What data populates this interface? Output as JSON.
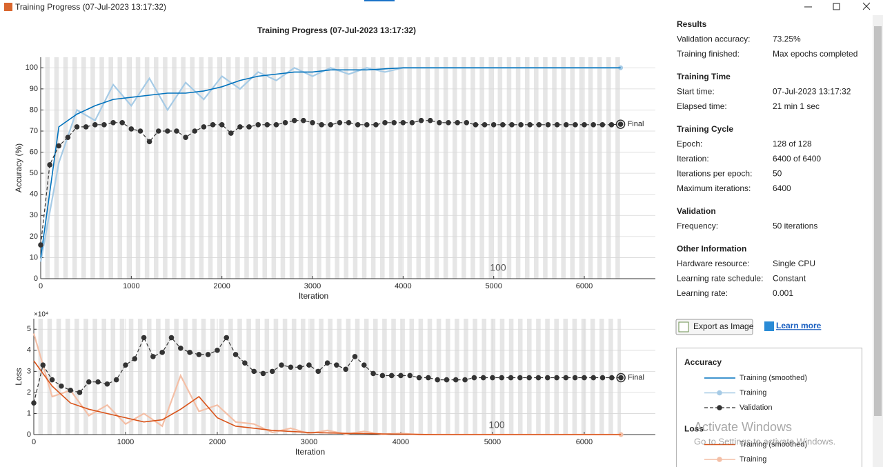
{
  "window_title": "Training Progress (07-Jul-2023 13:17:32)",
  "chart_data": [
    {
      "type": "line",
      "title": "Training Progress (07-Jul-2023 13:17:32)",
      "x_label": "Iteration",
      "y_label": "Accuracy (%)",
      "xlim": [
        0,
        6784
      ],
      "ylim": [
        0,
        105
      ],
      "xticks": [
        0,
        1000,
        2000,
        3000,
        4000,
        5000,
        6000
      ],
      "yticks": [
        0,
        10,
        20,
        30,
        40,
        50,
        60,
        70,
        80,
        90,
        100
      ],
      "grid": true,
      "annotation": "100",
      "final_label": "Final",
      "legend_title": "Accuracy",
      "series": [
        {
          "name": "Training (smoothed)",
          "color": "#0072bd",
          "style": "solid",
          "x": [
            0,
            200,
            400,
            600,
            800,
            1000,
            1200,
            1400,
            1600,
            1800,
            2000,
            2200,
            2400,
            2600,
            2800,
            3000,
            3200,
            3400,
            3600,
            3800,
            4000,
            4200,
            4400,
            4600,
            4800,
            5000,
            5200,
            5400,
            5600,
            5800,
            6000,
            6200,
            6400
          ],
          "values": [
            10,
            72,
            78,
            82,
            85,
            86,
            87,
            88,
            88,
            89,
            91,
            94,
            96,
            97,
            98,
            98,
            99,
            99,
            99,
            99.5,
            100,
            100,
            100,
            100,
            100,
            100,
            100,
            100,
            100,
            100,
            100,
            100,
            100
          ]
        },
        {
          "name": "Training",
          "color": "#a6cbe6",
          "style": "marker",
          "x": [
            0,
            200,
            400,
            600,
            800,
            1000,
            1200,
            1400,
            1600,
            1800,
            2000,
            2200,
            2400,
            2600,
            2800,
            3000,
            3200,
            3400,
            3600,
            3800,
            4000,
            4200,
            4400,
            4600,
            4800,
            5000,
            5200,
            5400,
            5600,
            5800,
            6000,
            6200,
            6400
          ],
          "values": [
            8,
            55,
            80,
            75,
            92,
            82,
            95,
            80,
            93,
            85,
            96,
            90,
            98,
            94,
            100,
            96,
            100,
            97,
            100,
            98,
            100,
            100,
            100,
            100,
            100,
            100,
            100,
            100,
            100,
            100,
            100,
            100,
            100
          ]
        },
        {
          "name": "Validation",
          "color": "#333333",
          "style": "dashed-marker",
          "x": [
            0,
            100,
            200,
            300,
            400,
            500,
            600,
            700,
            800,
            900,
            1000,
            1100,
            1200,
            1300,
            1400,
            1500,
            1600,
            1700,
            1800,
            1900,
            2000,
            2100,
            2200,
            2300,
            2400,
            2500,
            2600,
            2700,
            2800,
            2900,
            3000,
            3100,
            3200,
            3300,
            3400,
            3500,
            3600,
            3700,
            3800,
            3900,
            4000,
            4100,
            4200,
            4300,
            4400,
            4500,
            4600,
            4700,
            4800,
            4900,
            5000,
            5100,
            5200,
            5300,
            5400,
            5500,
            5600,
            5700,
            5800,
            5900,
            6000,
            6100,
            6200,
            6300,
            6400
          ],
          "values": [
            16,
            54,
            63,
            67,
            72,
            72,
            73,
            73,
            74,
            74,
            71,
            70,
            65,
            70,
            70,
            70,
            67,
            70,
            72,
            73,
            73,
            69,
            72,
            72,
            73,
            73,
            73,
            74,
            75,
            75,
            74,
            73,
            73,
            74,
            74,
            73,
            73,
            73,
            74,
            74,
            74,
            74,
            75,
            75,
            74,
            74,
            74,
            74,
            73,
            73,
            73,
            73,
            73,
            73,
            73,
            73,
            73,
            73,
            73,
            73,
            73,
            73,
            73,
            73,
            73.25
          ]
        }
      ]
    },
    {
      "type": "line",
      "x_label": "Iteration",
      "y_label": "Loss",
      "y_exponent_label": "×10⁴",
      "xlim": [
        0,
        6775
      ],
      "ylim": [
        0,
        5.5
      ],
      "xticks": [
        0,
        1000,
        2000,
        3000,
        4000,
        5000,
        6000
      ],
      "yticks": [
        0,
        1,
        2,
        3,
        4,
        5
      ],
      "grid": true,
      "annotation": "100",
      "final_label": "Final",
      "legend_title": "Loss",
      "series": [
        {
          "name": "Training (smoothed)",
          "color": "#d95319",
          "style": "solid",
          "x": [
            0,
            200,
            400,
            600,
            800,
            1000,
            1200,
            1400,
            1600,
            1800,
            2000,
            2200,
            2400,
            2600,
            2800,
            3000,
            3200,
            3400,
            3600,
            3800,
            4000,
            4200,
            4400,
            4600,
            4800,
            5000,
            5200,
            5400,
            5600,
            5800,
            6000,
            6200,
            6400
          ],
          "values": [
            3.5,
            2.3,
            1.5,
            1.2,
            1.0,
            0.8,
            0.6,
            0.7,
            1.2,
            1.8,
            0.8,
            0.4,
            0.3,
            0.2,
            0.15,
            0.1,
            0.08,
            0.06,
            0.05,
            0.03,
            0.02,
            0.01,
            0,
            0,
            0,
            0,
            0,
            0,
            0,
            0,
            0,
            0,
            0
          ]
        },
        {
          "name": "Training",
          "color": "#f4bfa6",
          "style": "marker",
          "x": [
            0,
            200,
            400,
            600,
            800,
            1000,
            1200,
            1400,
            1600,
            1800,
            2000,
            2200,
            2400,
            2600,
            2800,
            3000,
            3200,
            3400,
            3600,
            3800,
            4000,
            4200,
            4400,
            4600,
            4800,
            5000,
            5200,
            5400,
            5600,
            5800,
            6000,
            6200,
            6400
          ],
          "values": [
            4.8,
            1.8,
            2.1,
            0.9,
            1.4,
            0.5,
            1.0,
            0.4,
            2.8,
            1.1,
            1.4,
            0.6,
            0.5,
            0.1,
            0.3,
            0.05,
            0.2,
            0.02,
            0.15,
            0.01,
            0.06,
            0,
            0,
            0,
            0,
            0,
            0,
            0,
            0,
            0,
            0,
            0,
            0
          ]
        },
        {
          "name": "Validation",
          "color": "#333333",
          "style": "dashed-marker",
          "x": [
            0,
            100,
            200,
            300,
            400,
            500,
            600,
            700,
            800,
            900,
            1000,
            1100,
            1200,
            1300,
            1400,
            1500,
            1600,
            1700,
            1800,
            1900,
            2000,
            2100,
            2200,
            2300,
            2400,
            2500,
            2600,
            2700,
            2800,
            2900,
            3000,
            3100,
            3200,
            3300,
            3400,
            3500,
            3600,
            3700,
            3800,
            3900,
            4000,
            4100,
            4200,
            4300,
            4400,
            4500,
            4600,
            4700,
            4800,
            4900,
            5000,
            5100,
            5200,
            5300,
            5400,
            5500,
            5600,
            5700,
            5800,
            5900,
            6000,
            6100,
            6200,
            6300,
            6400
          ],
          "values": [
            1.5,
            3.3,
            2.6,
            2.3,
            2.1,
            2.0,
            2.5,
            2.5,
            2.4,
            2.6,
            3.3,
            3.6,
            4.6,
            3.7,
            3.9,
            4.6,
            4.1,
            3.9,
            3.8,
            3.8,
            4.0,
            4.6,
            3.8,
            3.4,
            3.0,
            2.9,
            3.0,
            3.3,
            3.2,
            3.2,
            3.3,
            3.0,
            3.4,
            3.3,
            3.1,
            3.7,
            3.3,
            2.9,
            2.8,
            2.8,
            2.8,
            2.8,
            2.7,
            2.7,
            2.6,
            2.6,
            2.6,
            2.6,
            2.7,
            2.7,
            2.7,
            2.7,
            2.7,
            2.7,
            2.7,
            2.7,
            2.7,
            2.7,
            2.7,
            2.7,
            2.7,
            2.7,
            2.7,
            2.7,
            2.7
          ]
        }
      ]
    }
  ],
  "panel": [
    {
      "heading": "Results",
      "rows": [
        {
          "label": "Validation accuracy:",
          "value": "73.25%"
        },
        {
          "label": "Training finished:",
          "value": "Max epochs completed"
        }
      ]
    },
    {
      "heading": "Training Time",
      "rows": [
        {
          "label": "Start time:",
          "value": "07-Jul-2023 13:17:32"
        },
        {
          "label": "Elapsed time:",
          "value": "21 min 1 sec"
        }
      ]
    },
    {
      "heading": "Training Cycle",
      "rows": [
        {
          "label": "Epoch:",
          "value": "128 of 128"
        },
        {
          "label": "Iteration:",
          "value": "6400 of 6400"
        },
        {
          "label": "Iterations per epoch:",
          "value": "50"
        },
        {
          "label": "Maximum iterations:",
          "value": "6400"
        }
      ]
    },
    {
      "heading": "Validation",
      "rows": [
        {
          "label": "Frequency:",
          "value": "50 iterations"
        }
      ]
    },
    {
      "heading": "Other Information",
      "rows": [
        {
          "label": "Hardware resource:",
          "value": "Single CPU"
        },
        {
          "label": "Learning rate schedule:",
          "value": "Constant"
        },
        {
          "label": "Learning rate:",
          "value": "0.001"
        }
      ]
    }
  ],
  "buttons": {
    "export": "Export as Image",
    "learn_more": "Learn more"
  },
  "watermark": {
    "title": "Activate Windows",
    "subtitle": "Go to Settings to activate Windows."
  }
}
